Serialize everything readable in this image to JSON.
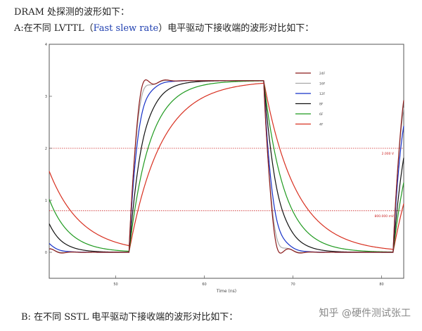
{
  "heading": "DRAM 处探测的波形如下：",
  "subheading": {
    "prefix": "A:在不同 LVTTL（",
    "highlight": "Fast slew rate",
    "suffix": "）电平驱动下接收端的波形对比如下："
  },
  "footer_text": "B: 在不同 SSTL 电平驱动下接收端的波形对比如下：",
  "watermark": "知乎 @硬件测试张工",
  "chart_data": {
    "type": "line",
    "xlabel": "Time (ns)",
    "xlim": [
      42.5,
      82.5
    ],
    "ylim": [
      -0.5,
      4.0
    ],
    "x_ticks": [
      50,
      60,
      70,
      80
    ],
    "y_ticks": [
      0,
      1,
      2,
      3,
      4
    ],
    "grid": false,
    "legend_position": "top-right",
    "reference_lines": [
      {
        "value": 2.0,
        "label": "2.000 V",
        "color": "#cc2222"
      },
      {
        "value": 0.8,
        "label": "800.000 mV",
        "color": "#cc2222"
      }
    ],
    "series": [
      {
        "name": "24F",
        "color": "#8b1a1a",
        "tau": 0.55,
        "ring": 0.6
      },
      {
        "name": "16F",
        "color": "#a8a8a8",
        "tau": 0.65,
        "ring": 0.35
      },
      {
        "name": "12F",
        "color": "#1530c8",
        "tau": 0.9,
        "ring": 0.1
      },
      {
        "name": "8F",
        "color": "#111111",
        "tau": 1.5,
        "ring": 0.05
      },
      {
        "name": "6F",
        "color": "#1f9a1f",
        "tau": 2.3,
        "ring": 0.0
      },
      {
        "name": "4F",
        "color": "#d83020",
        "tau": 3.6,
        "ring": 0.0
      }
    ],
    "high_level": 3.3,
    "low_level": 0.0,
    "rise_edges": [
      51.5,
      81.3
    ],
    "fall_edges": [
      39.8,
      66.7
    ]
  }
}
